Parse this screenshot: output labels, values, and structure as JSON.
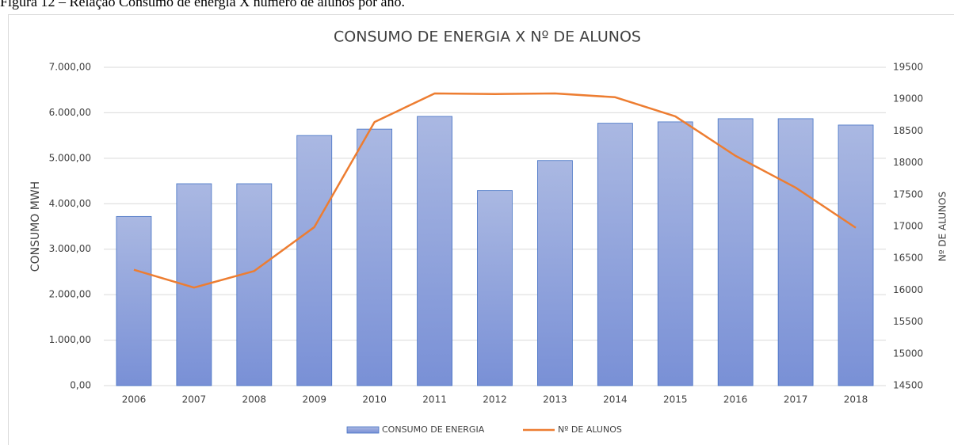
{
  "caption": "Figura 12 – Relação Consumo de energia X número de alunos por ano.",
  "chart_data": {
    "type": "bar-line",
    "title": "CONSUMO DE ENERGIA X Nº DE ALUNOS",
    "y_label": "CONSUMO MWH",
    "y2_label": "Nº DE ALUNOS",
    "categories": [
      "2006",
      "2007",
      "2008",
      "2009",
      "2010",
      "2011",
      "2012",
      "2013",
      "2014",
      "2015",
      "2016",
      "2017",
      "2018"
    ],
    "series": [
      {
        "name": "CONSUMO DE ENERGIA",
        "type": "bar",
        "color": "#8fa3dc",
        "values": [
          3720,
          4440,
          4440,
          5500,
          5640,
          5920,
          4290,
          4950,
          5770,
          5800,
          5870,
          5870,
          5730
        ]
      },
      {
        "name": "Nº DE ALUNOS",
        "type": "line",
        "axis": "y2",
        "color": "#ed7d31",
        "values": [
          16320,
          16040,
          16300,
          16990,
          18640,
          19090,
          19080,
          19090,
          19030,
          18730,
          18110,
          17610,
          16980
        ]
      }
    ],
    "ylim": [
      0,
      7000
    ],
    "yticks": [
      {
        "value": 0,
        "label": "0,00"
      },
      {
        "value": 1000,
        "label": "1.000,00"
      },
      {
        "value": 2000,
        "label": "2.000,00"
      },
      {
        "value": 3000,
        "label": "3.000,00"
      },
      {
        "value": 4000,
        "label": "4.000,00"
      },
      {
        "value": 5000,
        "label": "5.000,00"
      },
      {
        "value": 6000,
        "label": "6.000,00"
      },
      {
        "value": 7000,
        "label": "7.000,00"
      }
    ],
    "y2lim": [
      14500,
      19500
    ],
    "y2ticks": [
      14500,
      15000,
      15500,
      16000,
      16500,
      17000,
      17500,
      18000,
      18500,
      19000,
      19500
    ],
    "grid": true,
    "legend": "bottom"
  }
}
